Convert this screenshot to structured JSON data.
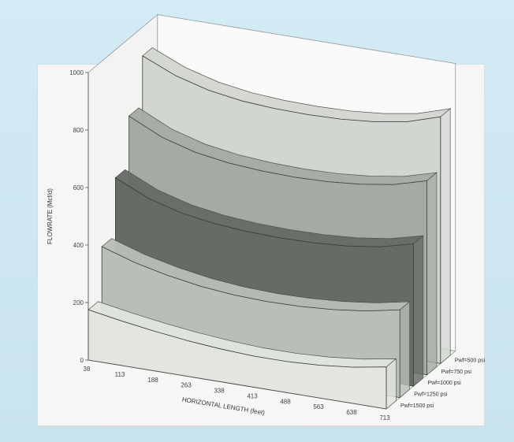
{
  "chart_data": {
    "type": "area",
    "subtype": "3d-ribbon",
    "title": "",
    "xlabel": "HORIZONTAL LENGTH (feet)",
    "ylabel": "FLOWRATE (Mcf/d)",
    "ylim": [
      0,
      1000
    ],
    "y_ticks": [
      "0",
      "200",
      "400",
      "600",
      "800",
      "1000"
    ],
    "x_ticks": [
      "38",
      "113",
      "188",
      "263",
      "338",
      "413",
      "488",
      "563",
      "638",
      "713"
    ],
    "grid": false,
    "legend_position": "right-depth",
    "series": [
      {
        "name": "Pwf=1500 psi",
        "color": "#e2e5e0",
        "values": [
          175,
          155,
          138,
          124,
          114,
          108,
          108,
          114,
          126,
          146
        ]
      },
      {
        "name": "Pwf=1250 psi",
        "color": "#b9bfb8",
        "values": [
          355,
          318,
          292,
          273,
          262,
          258,
          260,
          268,
          282,
          305
        ]
      },
      {
        "name": "Pwf=1000 psi",
        "color": "#646c65",
        "values": [
          555,
          502,
          470,
          452,
          443,
          440,
          442,
          450,
          466,
          495
        ]
      },
      {
        "name": "Pwf=750 psi",
        "color": "#a3aba2",
        "values": [
          730,
          675,
          642,
          624,
          615,
          612,
          615,
          625,
          643,
          675
        ]
      },
      {
        "name": "Pwf=500 psi",
        "color": "#d2d6d1",
        "values": [
          900,
          850,
          818,
          800,
          792,
          790,
          793,
          803,
          822,
          858
        ]
      }
    ]
  }
}
